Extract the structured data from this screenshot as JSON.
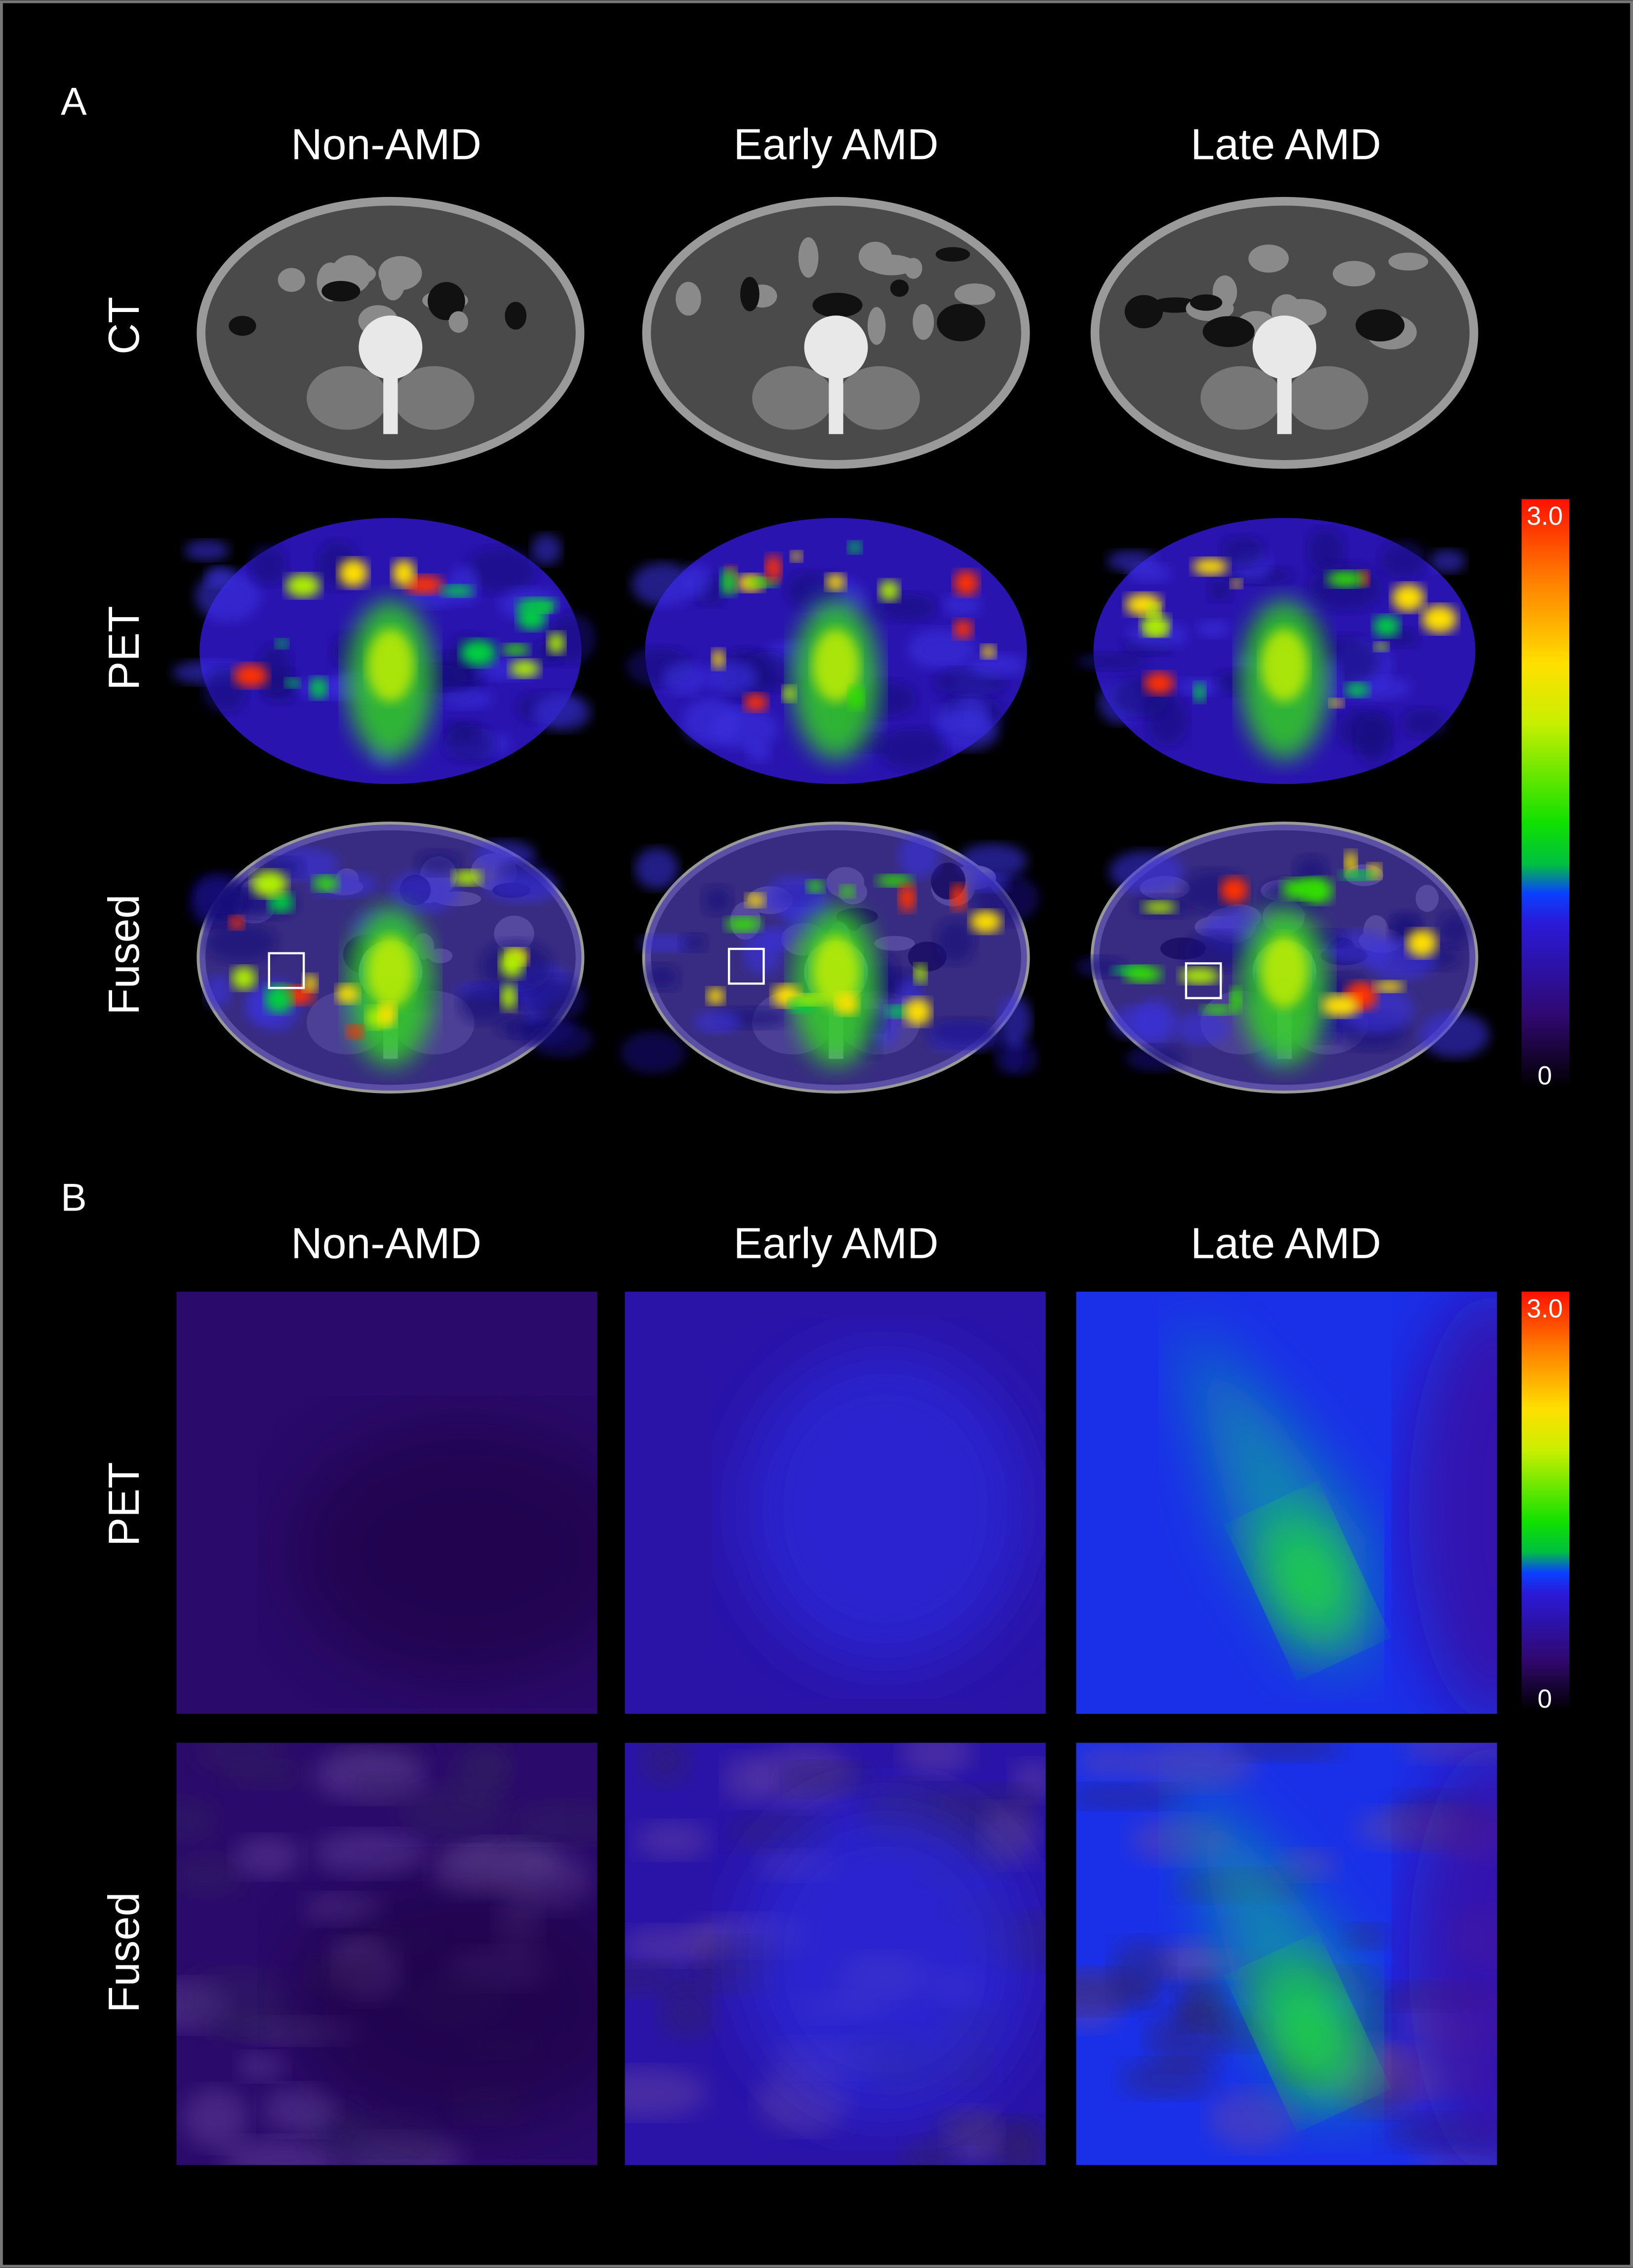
{
  "panels": [
    {
      "label": "A",
      "columns": [
        "Non-AMD",
        "Early AMD",
        "Late AMD"
      ],
      "rows": [
        "CT",
        "PET",
        "Fused"
      ],
      "colorbar": {
        "max_label": "3.0",
        "min_label": "0"
      }
    },
    {
      "label": "B",
      "columns": [
        "Non-AMD",
        "Early AMD",
        "Late AMD"
      ],
      "rows": [
        "PET",
        "Fused"
      ],
      "colorbar": {
        "max_label": "3.0",
        "min_label": "0"
      }
    }
  ]
}
